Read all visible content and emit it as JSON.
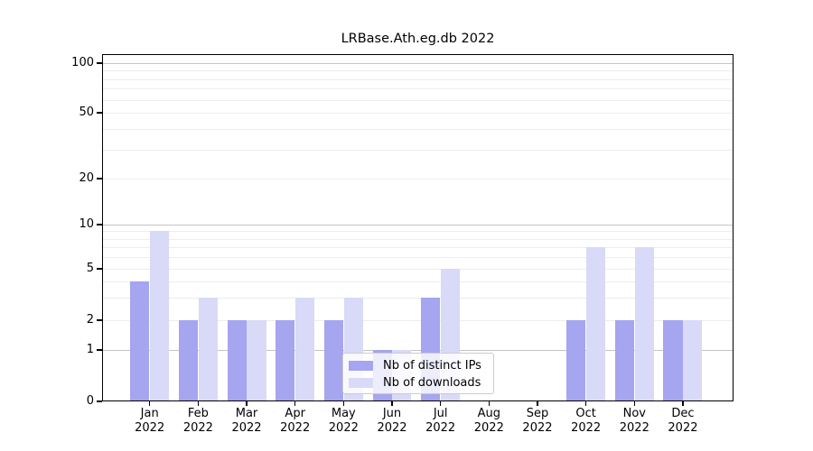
{
  "chart_data": {
    "type": "bar",
    "title": "LRBase.Ath.eg.db 2022",
    "categories": [
      "Jan",
      "Feb",
      "Mar",
      "Apr",
      "May",
      "Jun",
      "Jul",
      "Aug",
      "Sep",
      "Oct",
      "Nov",
      "Dec"
    ],
    "year": "2022",
    "series": [
      {
        "name": "Nb of distinct IPs",
        "color": "#a5a5f0",
        "values": [
          4,
          2,
          2,
          2,
          2,
          1,
          3,
          0,
          0,
          2,
          2,
          2
        ]
      },
      {
        "name": "Nb of downloads",
        "color": "#d9d9f8",
        "values": [
          9,
          3,
          2,
          3,
          3,
          1,
          5,
          0,
          0,
          7,
          7,
          2
        ]
      }
    ],
    "y_ticks": [
      0,
      1,
      2,
      5,
      10,
      20,
      50,
      100
    ],
    "ylim": [
      0,
      100
    ],
    "yscale": "log-like with zero baseline",
    "xlabel": "",
    "ylabel": "",
    "grid": "horizontal, log minor gridlines",
    "legend_position": "bottom-center inside plot"
  },
  "colors": {
    "axis": "#000000",
    "major_grid": "#c4c4c4",
    "minor_grid": "#ededed",
    "background": "#ffffff"
  }
}
